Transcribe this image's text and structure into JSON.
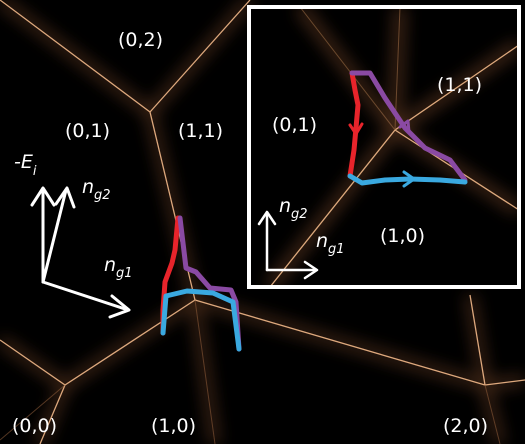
{
  "main_panel": {
    "states": [
      "(0,2)",
      "(0,1)",
      "(1,1)",
      "(0,0)",
      "(1,0)",
      "(2,0)"
    ],
    "axis_labels": {
      "field": {
        "sign": "-",
        "symbol": "E",
        "subscript": "i"
      },
      "ng2": {
        "symbol": "n",
        "subscript": "g2"
      },
      "ng1": {
        "symbol": "n",
        "subscript": "g1"
      }
    }
  },
  "inset_panel": {
    "states": [
      "(1,1)",
      "(0,1)",
      "(1,0)"
    ],
    "axis_labels": {
      "ng2": {
        "symbol": "n",
        "subscript": "g2"
      },
      "ng1": {
        "symbol": "n",
        "subscript": "g1"
      }
    }
  },
  "colors": {
    "background": "#000000",
    "boundary_glow": "#f2b98a",
    "red_path": "#e8242b",
    "purple_path": "#8a4aa3",
    "blue_path": "#3aa9e0",
    "inset_border": "#ffffff"
  }
}
